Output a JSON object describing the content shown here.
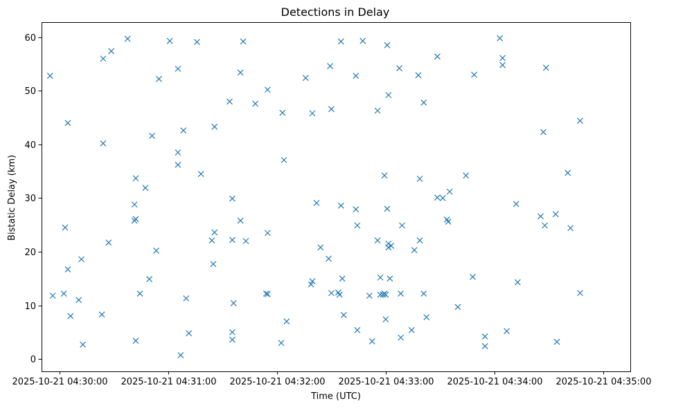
{
  "chart_data": {
    "type": "scatter",
    "title": "Detections in Delay",
    "xlabel": "Time (UTC)",
    "ylabel": "Bistatic Delay (km)",
    "marker": "x",
    "color": "#1f77b4",
    "x_domain_seconds": [
      -10,
      315
    ],
    "ylim": [
      -2.3,
      62.8
    ],
    "xticks": [
      {
        "t": 0,
        "label": "2025-10-21 04:30:00"
      },
      {
        "t": 60,
        "label": "2025-10-21 04:31:00"
      },
      {
        "t": 120,
        "label": "2025-10-21 04:32:00"
      },
      {
        "t": 180,
        "label": "2025-10-21 04:33:00"
      },
      {
        "t": 240,
        "label": "2025-10-21 04:34:00"
      },
      {
        "t": 300,
        "label": "2025-10-21 04:35:00"
      }
    ],
    "yticks": [
      {
        "v": 0,
        "label": "0"
      },
      {
        "v": 10,
        "label": "10"
      },
      {
        "v": 20,
        "label": "20"
      },
      {
        "v": 30,
        "label": "30"
      },
      {
        "v": 40,
        "label": "40"
      },
      {
        "v": 50,
        "label": "50"
      },
      {
        "v": 60,
        "label": "60"
      }
    ],
    "x_unit": "seconds after 2025-10-21 04:30:00 UTC",
    "points": [
      {
        "t": -5.3,
        "y": 52.8
      },
      {
        "t": -3.8,
        "y": 11.8
      },
      {
        "t": 2.3,
        "y": 12.2
      },
      {
        "t": 3.0,
        "y": 24.5
      },
      {
        "t": 4.5,
        "y": 44.0
      },
      {
        "t": 4.5,
        "y": 16.7
      },
      {
        "t": 6.0,
        "y": 8.0
      },
      {
        "t": 10.5,
        "y": 11.0
      },
      {
        "t": 12.0,
        "y": 18.6
      },
      {
        "t": 12.8,
        "y": 2.7
      },
      {
        "t": 23.3,
        "y": 8.3
      },
      {
        "t": 24.0,
        "y": 56.0
      },
      {
        "t": 24.0,
        "y": 40.2
      },
      {
        "t": 27.0,
        "y": 21.7
      },
      {
        "t": 28.5,
        "y": 57.4
      },
      {
        "t": 37.5,
        "y": 59.7
      },
      {
        "t": 41.3,
        "y": 28.8
      },
      {
        "t": 41.3,
        "y": 25.8
      },
      {
        "t": 42.0,
        "y": 33.7
      },
      {
        "t": 42.0,
        "y": 26.1
      },
      {
        "t": 42.0,
        "y": 3.4
      },
      {
        "t": 44.3,
        "y": 12.2
      },
      {
        "t": 47.3,
        "y": 31.9
      },
      {
        "t": 49.5,
        "y": 14.9
      },
      {
        "t": 51.0,
        "y": 41.6
      },
      {
        "t": 53.3,
        "y": 20.2
      },
      {
        "t": 54.8,
        "y": 52.2
      },
      {
        "t": 60.8,
        "y": 59.3
      },
      {
        "t": 65.3,
        "y": 54.1
      },
      {
        "t": 65.3,
        "y": 38.5
      },
      {
        "t": 65.3,
        "y": 36.2
      },
      {
        "t": 66.8,
        "y": 0.7
      },
      {
        "t": 68.3,
        "y": 42.6
      },
      {
        "t": 69.8,
        "y": 11.3
      },
      {
        "t": 71.3,
        "y": 4.8
      },
      {
        "t": 75.8,
        "y": 59.1
      },
      {
        "t": 78.0,
        "y": 34.5
      },
      {
        "t": 84.0,
        "y": 22.1
      },
      {
        "t": 84.8,
        "y": 17.7
      },
      {
        "t": 85.5,
        "y": 43.3
      },
      {
        "t": 85.5,
        "y": 23.6
      },
      {
        "t": 93.8,
        "y": 48.0
      },
      {
        "t": 95.3,
        "y": 29.9
      },
      {
        "t": 95.3,
        "y": 22.2
      },
      {
        "t": 95.3,
        "y": 5.0
      },
      {
        "t": 95.3,
        "y": 3.6
      },
      {
        "t": 96.0,
        "y": 10.4
      },
      {
        "t": 99.8,
        "y": 53.4
      },
      {
        "t": 99.8,
        "y": 25.8
      },
      {
        "t": 101.3,
        "y": 59.2
      },
      {
        "t": 102.8,
        "y": 22.0
      },
      {
        "t": 108.0,
        "y": 47.6
      },
      {
        "t": 114.0,
        "y": 12.2
      },
      {
        "t": 114.8,
        "y": 50.2
      },
      {
        "t": 114.8,
        "y": 23.5
      },
      {
        "t": 114.8,
        "y": 12.1
      },
      {
        "t": 122.3,
        "y": 3.0
      },
      {
        "t": 123.0,
        "y": 45.9
      },
      {
        "t": 123.8,
        "y": 37.1
      },
      {
        "t": 125.3,
        "y": 7.0
      },
      {
        "t": 135.8,
        "y": 52.4
      },
      {
        "t": 138.8,
        "y": 13.9
      },
      {
        "t": 139.5,
        "y": 14.5
      },
      {
        "t": 139.5,
        "y": 45.8
      },
      {
        "t": 141.8,
        "y": 29.1
      },
      {
        "t": 144.0,
        "y": 20.8
      },
      {
        "t": 148.5,
        "y": 18.7
      },
      {
        "t": 149.3,
        "y": 54.6
      },
      {
        "t": 150.0,
        "y": 46.6
      },
      {
        "t": 150.0,
        "y": 12.3
      },
      {
        "t": 153.8,
        "y": 12.4
      },
      {
        "t": 154.5,
        "y": 12.0
      },
      {
        "t": 155.3,
        "y": 59.2
      },
      {
        "t": 155.3,
        "y": 28.6
      },
      {
        "t": 156.0,
        "y": 15.0
      },
      {
        "t": 156.8,
        "y": 8.2
      },
      {
        "t": 163.5,
        "y": 52.8
      },
      {
        "t": 163.5,
        "y": 27.9
      },
      {
        "t": 164.3,
        "y": 24.9
      },
      {
        "t": 164.3,
        "y": 5.4
      },
      {
        "t": 167.3,
        "y": 59.3
      },
      {
        "t": 171.0,
        "y": 11.8
      },
      {
        "t": 172.5,
        "y": 3.3
      },
      {
        "t": 175.5,
        "y": 46.3
      },
      {
        "t": 175.5,
        "y": 22.1
      },
      {
        "t": 177.0,
        "y": 15.2
      },
      {
        "t": 177.0,
        "y": 12.0
      },
      {
        "t": 178.5,
        "y": 12.0
      },
      {
        "t": 179.3,
        "y": 12.2
      },
      {
        "t": 179.3,
        "y": 34.2
      },
      {
        "t": 180.0,
        "y": 12.0
      },
      {
        "t": 180.0,
        "y": 7.4
      },
      {
        "t": 180.8,
        "y": 58.5
      },
      {
        "t": 180.8,
        "y": 28.0
      },
      {
        "t": 181.5,
        "y": 49.2
      },
      {
        "t": 181.5,
        "y": 21.5
      },
      {
        "t": 181.5,
        "y": 20.8
      },
      {
        "t": 182.3,
        "y": 15.0
      },
      {
        "t": 183.0,
        "y": 21.1
      },
      {
        "t": 187.5,
        "y": 54.2
      },
      {
        "t": 188.3,
        "y": 12.2
      },
      {
        "t": 188.3,
        "y": 4.0
      },
      {
        "t": 189.0,
        "y": 24.9
      },
      {
        "t": 194.3,
        "y": 5.4
      },
      {
        "t": 195.8,
        "y": 20.3
      },
      {
        "t": 198.0,
        "y": 52.9
      },
      {
        "t": 198.8,
        "y": 33.6
      },
      {
        "t": 198.8,
        "y": 22.1
      },
      {
        "t": 201.0,
        "y": 47.8
      },
      {
        "t": 201.0,
        "y": 12.2
      },
      {
        "t": 202.5,
        "y": 7.8
      },
      {
        "t": 208.5,
        "y": 56.4
      },
      {
        "t": 208.5,
        "y": 30.1
      },
      {
        "t": 211.5,
        "y": 30.0
      },
      {
        "t": 213.8,
        "y": 26.0
      },
      {
        "t": 214.5,
        "y": 25.6
      },
      {
        "t": 215.3,
        "y": 31.2
      },
      {
        "t": 219.8,
        "y": 9.7
      },
      {
        "t": 224.3,
        "y": 34.2
      },
      {
        "t": 228.0,
        "y": 15.3
      },
      {
        "t": 228.8,
        "y": 53.0
      },
      {
        "t": 234.8,
        "y": 4.2
      },
      {
        "t": 234.8,
        "y": 2.4
      },
      {
        "t": 243.0,
        "y": 59.8
      },
      {
        "t": 244.5,
        "y": 56.1
      },
      {
        "t": 244.5,
        "y": 54.8
      },
      {
        "t": 246.8,
        "y": 5.2
      },
      {
        "t": 252.0,
        "y": 28.9
      },
      {
        "t": 252.8,
        "y": 14.3
      },
      {
        "t": 265.5,
        "y": 26.6
      },
      {
        "t": 267.0,
        "y": 42.3
      },
      {
        "t": 267.8,
        "y": 24.9
      },
      {
        "t": 268.5,
        "y": 54.3
      },
      {
        "t": 273.8,
        "y": 27.0
      },
      {
        "t": 274.5,
        "y": 3.2
      },
      {
        "t": 280.5,
        "y": 34.7
      },
      {
        "t": 282.0,
        "y": 24.4
      },
      {
        "t": 287.3,
        "y": 44.4
      },
      {
        "t": 287.3,
        "y": 12.3
      }
    ]
  }
}
